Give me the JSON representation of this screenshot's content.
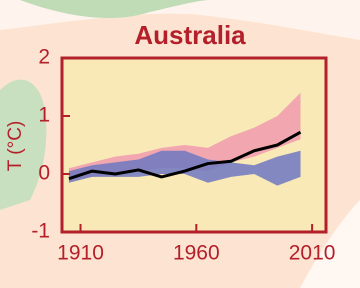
{
  "chart_data": {
    "type": "line",
    "title": "Australia",
    "y_label": "T (°C)",
    "x": [
      1905,
      1915,
      1925,
      1935,
      1945,
      1955,
      1965,
      1975,
      1985,
      1995,
      2005
    ],
    "xlim": [
      1902,
      2016
    ],
    "xticks": [
      1910,
      1960,
      2010
    ],
    "ylim": [
      -1,
      2
    ],
    "yticks": [
      -1,
      0,
      1,
      2
    ],
    "bands": [
      {
        "color": "#f19aae",
        "low": [
          -0.1,
          -0.05,
          0,
          0.05,
          0.1,
          0.1,
          0.05,
          0.2,
          0.3,
          0.45,
          0.6
        ],
        "high": [
          0.1,
          0.2,
          0.3,
          0.35,
          0.45,
          0.5,
          0.45,
          0.65,
          0.8,
          1.0,
          1.4
        ]
      },
      {
        "color": "#6f78c2",
        "low": [
          -0.15,
          -0.05,
          -0.05,
          -0.05,
          0,
          0,
          -0.15,
          -0.05,
          0,
          -0.2,
          -0.05
        ],
        "high": [
          0.05,
          0.15,
          0.2,
          0.25,
          0.4,
          0.4,
          0.25,
          0.2,
          0.15,
          0.3,
          0.4
        ]
      }
    ],
    "series": [
      {
        "color": "#000000",
        "values": [
          -0.08,
          0.05,
          0,
          0.07,
          -0.05,
          0.05,
          0.18,
          0.22,
          0.4,
          0.5,
          0.72
        ]
      }
    ]
  }
}
